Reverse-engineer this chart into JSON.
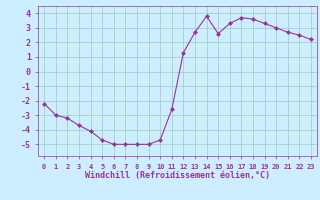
{
  "x": [
    0,
    1,
    2,
    3,
    4,
    5,
    6,
    7,
    8,
    9,
    10,
    11,
    12,
    13,
    14,
    15,
    16,
    17,
    18,
    19,
    20,
    21,
    22,
    23
  ],
  "y": [
    -2.2,
    -3.0,
    -3.2,
    -3.7,
    -4.1,
    -4.7,
    -5.0,
    -5.0,
    -5.0,
    -5.0,
    -4.7,
    -2.6,
    1.3,
    2.7,
    3.8,
    2.6,
    3.3,
    3.7,
    3.6,
    3.3,
    3.0,
    2.7,
    2.5,
    2.2
  ],
  "line_color": "#993399",
  "marker": "D",
  "marker_size": 2,
  "bg_color": "#cceeff",
  "grid_color": "#99ccbb",
  "xlabel": "Windchill (Refroidissement éolien,°C)",
  "xlabel_color": "#993399",
  "tick_color": "#993399",
  "ylim": [
    -5.8,
    4.5
  ],
  "xlim": [
    -0.5,
    23.5
  ],
  "yticks": [
    -5,
    -4,
    -3,
    -2,
    -1,
    0,
    1,
    2,
    3,
    4
  ],
  "xticks": [
    0,
    1,
    2,
    3,
    4,
    5,
    6,
    7,
    8,
    9,
    10,
    11,
    12,
    13,
    14,
    15,
    16,
    17,
    18,
    19,
    20,
    21,
    22,
    23
  ],
  "xtick_labels": [
    "0",
    "1",
    "2",
    "3",
    "4",
    "5",
    "6",
    "7",
    "8",
    "9",
    "10",
    "11",
    "12",
    "13",
    "14",
    "15",
    "16",
    "17",
    "18",
    "19",
    "20",
    "21",
    "22",
    "23"
  ]
}
